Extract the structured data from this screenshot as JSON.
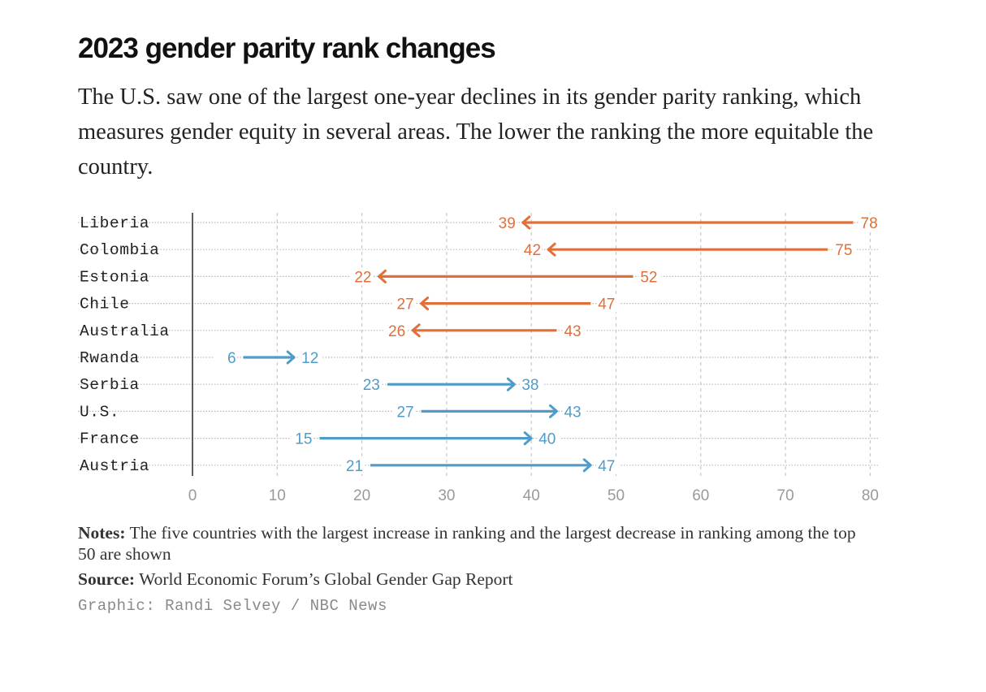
{
  "title": "2023 gender parity rank changes",
  "subtitle": "The U.S. saw one of the largest one-year declines in its gender parity ranking, which measures gender equity in several areas. The lower the ranking the more equitable the country.",
  "notes_label": "Notes:",
  "notes_text": "The five countries with the largest increase in ranking and the largest decrease in ranking among the top 50 are shown",
  "source_label": "Source:",
  "source_text": "World Economic Forum’s Global Gender Gap Report",
  "credit": "Graphic: Randi Selvey / NBC News",
  "colors": {
    "improved": "#e0703a",
    "declined": "#4f9cc9"
  },
  "chart_data": {
    "type": "arrow",
    "title": "2023 gender parity rank changes",
    "xlim": [
      0,
      80
    ],
    "xticks": [
      0,
      10,
      20,
      30,
      40,
      50,
      60,
      70,
      80
    ],
    "grid": true,
    "rows": [
      {
        "country": "Liberia",
        "from": 78,
        "to": 39,
        "direction": "improved"
      },
      {
        "country": "Colombia",
        "from": 75,
        "to": 42,
        "direction": "improved"
      },
      {
        "country": "Estonia",
        "from": 52,
        "to": 22,
        "direction": "improved"
      },
      {
        "country": "Chile",
        "from": 47,
        "to": 27,
        "direction": "improved"
      },
      {
        "country": "Australia",
        "from": 43,
        "to": 26,
        "direction": "improved"
      },
      {
        "country": "Rwanda",
        "from": 6,
        "to": 12,
        "direction": "declined"
      },
      {
        "country": "Serbia",
        "from": 23,
        "to": 38,
        "direction": "declined"
      },
      {
        "country": "U.S.",
        "from": 27,
        "to": 43,
        "direction": "declined"
      },
      {
        "country": "France",
        "from": 15,
        "to": 40,
        "direction": "declined"
      },
      {
        "country": "Austria",
        "from": 21,
        "to": 47,
        "direction": "declined"
      }
    ]
  }
}
